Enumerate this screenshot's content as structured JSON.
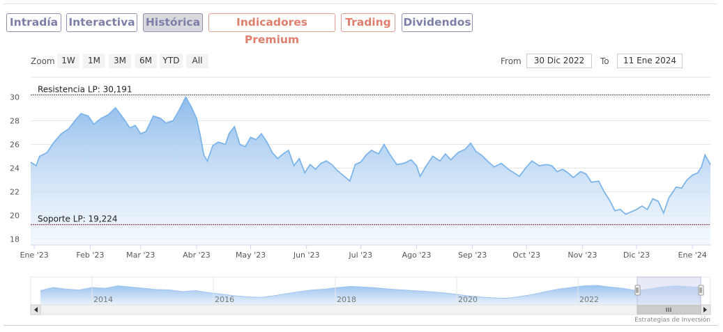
{
  "tabs": [
    {
      "label": "Intradía",
      "style": "gray"
    },
    {
      "label": "Interactiva",
      "style": "gray"
    },
    {
      "label": "Histórica",
      "style": "active"
    },
    {
      "label": "Indicadores Premium",
      "style": "orange"
    },
    {
      "label": "Trading",
      "style": "orange"
    },
    {
      "label": "Dividendos",
      "style": "gray"
    }
  ],
  "zoom": {
    "label": "Zoom",
    "buttons": [
      "1W",
      "1M",
      "3M",
      "6M",
      "YTD",
      "All"
    ]
  },
  "range": {
    "from_label": "From",
    "from_value": "30 Dic 2022",
    "to_label": "To",
    "to_value": "11 Ene 2024"
  },
  "chart_data": {
    "type": "area",
    "title": "",
    "xlabel": "",
    "ylabel": "",
    "ylim": [
      17.5,
      30.5
    ],
    "yticks": [
      18,
      20,
      22,
      24,
      26,
      28,
      30
    ],
    "xlim": [
      "2022-12-30",
      "2024-01-11"
    ],
    "x_tick_labels": [
      {
        "date": "2023-01-01",
        "label": "Ene '23"
      },
      {
        "date": "2023-02-01",
        "label": "Feb '23"
      },
      {
        "date": "2023-03-01",
        "label": "Mar '23"
      },
      {
        "date": "2023-04-01",
        "label": "Abr '23"
      },
      {
        "date": "2023-05-01",
        "label": "May '23"
      },
      {
        "date": "2023-06-01",
        "label": "Jun '23"
      },
      {
        "date": "2023-07-01",
        "label": "Jul '23"
      },
      {
        "date": "2023-08-01",
        "label": "Ago '23"
      },
      {
        "date": "2023-09-01",
        "label": "Sep '23"
      },
      {
        "date": "2023-10-01",
        "label": "Oct '23"
      },
      {
        "date": "2023-11-01",
        "label": "Nov '23"
      },
      {
        "date": "2023-12-01",
        "label": "Dic '23"
      },
      {
        "date": "2024-01-01",
        "label": "Ene '24"
      }
    ],
    "grid": true,
    "lines": [
      {
        "label": "Resistencia LP: 30,191",
        "value": 30.191
      },
      {
        "label": "Soporte LP: 19,224",
        "value": 19.224
      }
    ],
    "series": [
      {
        "values": [
          [
            "2022-12-30",
            24.5
          ],
          [
            "2023-01-02",
            24.2
          ],
          [
            "2023-01-04",
            25.0
          ],
          [
            "2023-01-08",
            25.3
          ],
          [
            "2023-01-12",
            26.2
          ],
          [
            "2023-01-16",
            26.9
          ],
          [
            "2023-01-20",
            27.3
          ],
          [
            "2023-01-24",
            28.1
          ],
          [
            "2023-01-27",
            28.6
          ],
          [
            "2023-01-31",
            28.4
          ],
          [
            "2023-02-03",
            27.7
          ],
          [
            "2023-02-07",
            28.2
          ],
          [
            "2023-02-11",
            28.5
          ],
          [
            "2023-02-15",
            29.1
          ],
          [
            "2023-02-19",
            28.3
          ],
          [
            "2023-02-23",
            27.4
          ],
          [
            "2023-02-26",
            27.6
          ],
          [
            "2023-03-01",
            26.9
          ],
          [
            "2023-03-04",
            27.1
          ],
          [
            "2023-03-08",
            28.4
          ],
          [
            "2023-03-12",
            28.2
          ],
          [
            "2023-03-15",
            27.8
          ],
          [
            "2023-03-19",
            28.0
          ],
          [
            "2023-03-22",
            28.8
          ],
          [
            "2023-03-26",
            30.0
          ],
          [
            "2023-03-29",
            29.2
          ],
          [
            "2023-04-01",
            28.2
          ],
          [
            "2023-04-03",
            26.8
          ],
          [
            "2023-04-05",
            25.1
          ],
          [
            "2023-04-07",
            24.6
          ],
          [
            "2023-04-10",
            25.9
          ],
          [
            "2023-04-13",
            26.2
          ],
          [
            "2023-04-17",
            26.0
          ],
          [
            "2023-04-19",
            26.9
          ],
          [
            "2023-04-22",
            27.5
          ],
          [
            "2023-04-25",
            26.0
          ],
          [
            "2023-04-28",
            25.8
          ],
          [
            "2023-05-01",
            26.6
          ],
          [
            "2023-05-04",
            26.4
          ],
          [
            "2023-05-07",
            26.9
          ],
          [
            "2023-05-10",
            26.2
          ],
          [
            "2023-05-13",
            25.3
          ],
          [
            "2023-05-16",
            24.8
          ],
          [
            "2023-05-19",
            25.2
          ],
          [
            "2023-05-22",
            25.5
          ],
          [
            "2023-05-25",
            24.2
          ],
          [
            "2023-05-28",
            24.8
          ],
          [
            "2023-05-31",
            23.6
          ],
          [
            "2023-06-03",
            24.3
          ],
          [
            "2023-06-06",
            23.9
          ],
          [
            "2023-06-09",
            24.4
          ],
          [
            "2023-06-12",
            24.6
          ],
          [
            "2023-06-15",
            24.3
          ],
          [
            "2023-06-18",
            23.8
          ],
          [
            "2023-06-22",
            23.3
          ],
          [
            "2023-06-25",
            22.9
          ],
          [
            "2023-06-28",
            24.3
          ],
          [
            "2023-07-01",
            24.5
          ],
          [
            "2023-07-04",
            25.1
          ],
          [
            "2023-07-07",
            25.5
          ],
          [
            "2023-07-11",
            25.2
          ],
          [
            "2023-07-14",
            26.0
          ],
          [
            "2023-07-17",
            25.2
          ],
          [
            "2023-07-21",
            24.3
          ],
          [
            "2023-07-25",
            24.4
          ],
          [
            "2023-07-29",
            24.7
          ],
          [
            "2023-08-01",
            24.2
          ],
          [
            "2023-08-03",
            23.3
          ],
          [
            "2023-08-06",
            24.1
          ],
          [
            "2023-08-10",
            25.0
          ],
          [
            "2023-08-14",
            24.6
          ],
          [
            "2023-08-17",
            25.2
          ],
          [
            "2023-08-20",
            24.7
          ],
          [
            "2023-08-24",
            25.3
          ],
          [
            "2023-08-28",
            25.6
          ],
          [
            "2023-08-31",
            26.1
          ],
          [
            "2023-09-03",
            25.4
          ],
          [
            "2023-09-06",
            25.1
          ],
          [
            "2023-09-10",
            24.5
          ],
          [
            "2023-09-13",
            24.1
          ],
          [
            "2023-09-17",
            24.4
          ],
          [
            "2023-09-21",
            23.9
          ],
          [
            "2023-09-24",
            23.6
          ],
          [
            "2023-09-27",
            23.3
          ],
          [
            "2023-10-01",
            24.1
          ],
          [
            "2023-10-04",
            24.6
          ],
          [
            "2023-10-08",
            24.2
          ],
          [
            "2023-10-12",
            24.3
          ],
          [
            "2023-10-15",
            24.2
          ],
          [
            "2023-10-18",
            23.7
          ],
          [
            "2023-10-21",
            23.9
          ],
          [
            "2023-10-24",
            23.6
          ],
          [
            "2023-10-27",
            23.2
          ],
          [
            "2023-10-31",
            23.7
          ],
          [
            "2023-11-03",
            23.5
          ],
          [
            "2023-11-06",
            22.8
          ],
          [
            "2023-11-10",
            22.9
          ],
          [
            "2023-11-13",
            22.0
          ],
          [
            "2023-11-16",
            21.3
          ],
          [
            "2023-11-19",
            20.4
          ],
          [
            "2023-11-22",
            20.5
          ],
          [
            "2023-11-25",
            20.1
          ],
          [
            "2023-11-28",
            20.3
          ],
          [
            "2023-12-01",
            20.5
          ],
          [
            "2023-12-04",
            20.8
          ],
          [
            "2023-12-07",
            20.5
          ],
          [
            "2023-12-10",
            21.4
          ],
          [
            "2023-12-13",
            21.2
          ],
          [
            "2023-12-16",
            20.2
          ],
          [
            "2023-12-19",
            21.5
          ],
          [
            "2023-12-23",
            22.4
          ],
          [
            "2023-12-26",
            22.3
          ],
          [
            "2023-12-29",
            23.0
          ],
          [
            "2024-01-01",
            23.4
          ],
          [
            "2024-01-04",
            23.6
          ],
          [
            "2024-01-06",
            24.1
          ],
          [
            "2024-01-08",
            25.1
          ],
          [
            "2024-01-11",
            24.3
          ]
        ]
      }
    ]
  },
  "navigator": {
    "year_labels": [
      "2014",
      "2016",
      "2018",
      "2020",
      "2022"
    ]
  },
  "credit": "Estrategias de Inversión",
  "colors": {
    "line": "#7cb5ec",
    "fill_top": "#88b8ea",
    "fill_bottom": "#eef5fd",
    "grid": "#e6e6e6",
    "level_line": "#333333",
    "navigator_mask": "#d6daf0"
  }
}
